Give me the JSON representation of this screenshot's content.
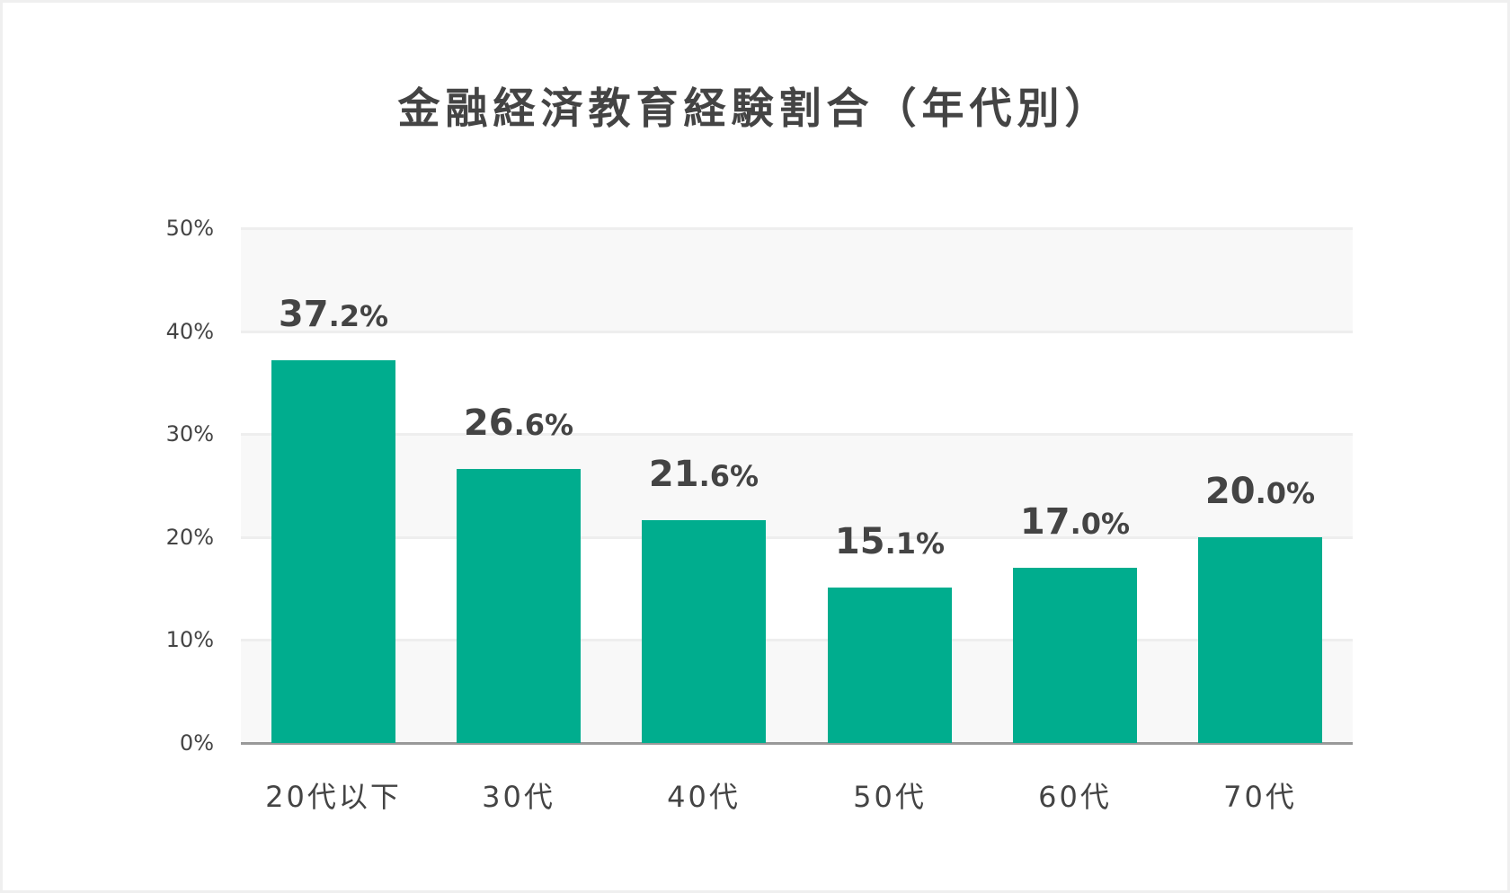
{
  "chart_data": {
    "type": "bar",
    "title": "金融経済教育経験割合（年代別）",
    "categories": [
      "20代以下",
      "30代",
      "40代",
      "50代",
      "60代",
      "70代"
    ],
    "values": [
      37.2,
      26.6,
      21.6,
      15.1,
      17.0,
      20.0
    ],
    "value_labels": [
      {
        "int": "37",
        "dec": ".2%"
      },
      {
        "int": "26",
        "dec": ".6%"
      },
      {
        "int": "21",
        "dec": ".6%"
      },
      {
        "int": "15",
        "dec": ".1%"
      },
      {
        "int": "17",
        "dec": ".0%"
      },
      {
        "int": "20",
        "dec": ".0%"
      }
    ],
    "xlabel": "",
    "ylabel": "",
    "ylim": [
      0,
      50
    ],
    "yticks": [
      "0%",
      "10%",
      "20%",
      "30%",
      "40%",
      "50%"
    ],
    "grid": true,
    "legend": null,
    "bar_color": "#00ad8e",
    "band_color": "#f8f8f8",
    "grid_color": "#eeeeee",
    "axis_color": "#999999",
    "text_color": "#444444"
  }
}
